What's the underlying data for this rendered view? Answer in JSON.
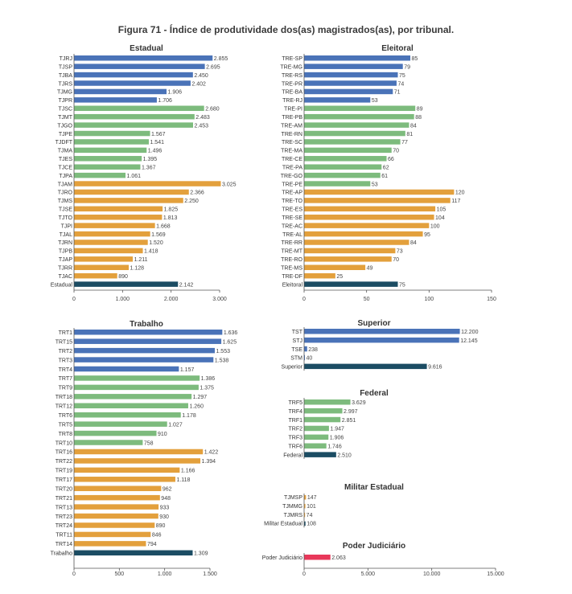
{
  "figure_title": "Figura 71 - Índice de produtividade dos(as) magistrados(as), por tribunal.",
  "colors": {
    "porte_grande": "#4a73b8",
    "porte_medio": "#7dbb7d",
    "porte_pequeno": "#e3a03c",
    "total": "#1b4c63",
    "poder_judiciario": "#e8385a",
    "axis": "#555555"
  },
  "chart_data": [
    {
      "type": "bar",
      "orientation": "horizontal",
      "title": "Estadual",
      "xlim": [
        0,
        3000
      ],
      "ticks": [
        0,
        1000,
        2000,
        3000
      ],
      "tick_labels": [
        "0",
        "1.000",
        "2.000",
        "3.000"
      ],
      "categories": [
        "TJRJ",
        "TJSP",
        "TJBA",
        "TJRS",
        "TJMG",
        "TJPR",
        "TJSC",
        "TJMT",
        "TJGO",
        "TJPE",
        "TJDFT",
        "TJMA",
        "TJES",
        "TJCE",
        "TJPA",
        "TJAM",
        "TJRO",
        "TJMS",
        "TJSE",
        "TJTO",
        "TJPI",
        "TJAL",
        "TJRN",
        "TJPB",
        "TJAP",
        "TJRR",
        "TJAC",
        "Estadual"
      ],
      "values": [
        2855,
        2695,
        2450,
        2402,
        1906,
        1706,
        2680,
        2483,
        2453,
        1567,
        1541,
        1496,
        1395,
        1367,
        1061,
        3025,
        2366,
        2250,
        1825,
        1813,
        1668,
        1569,
        1520,
        1418,
        1211,
        1128,
        890,
        2142
      ],
      "value_labels": [
        "2.855",
        "2.695",
        "2.450",
        "2.402",
        "1.906",
        "1.706",
        "2.680",
        "2.483",
        "2.453",
        "1.567",
        "1.541",
        "1.496",
        "1.395",
        "1.367",
        "1.061",
        "3.025",
        "2.366",
        "2.250",
        "1.825",
        "1.813",
        "1.668",
        "1.569",
        "1.520",
        "1.418",
        "1.211",
        "1.128",
        "890",
        "2.142"
      ],
      "groups": [
        "porte_grande",
        "porte_grande",
        "porte_grande",
        "porte_grande",
        "porte_grande",
        "porte_grande",
        "porte_medio",
        "porte_medio",
        "porte_medio",
        "porte_medio",
        "porte_medio",
        "porte_medio",
        "porte_medio",
        "porte_medio",
        "porte_medio",
        "porte_pequeno",
        "porte_pequeno",
        "porte_pequeno",
        "porte_pequeno",
        "porte_pequeno",
        "porte_pequeno",
        "porte_pequeno",
        "porte_pequeno",
        "porte_pequeno",
        "porte_pequeno",
        "porte_pequeno",
        "porte_pequeno",
        "total"
      ]
    },
    {
      "type": "bar",
      "orientation": "horizontal",
      "title": "Eleitoral",
      "xlim": [
        0,
        150
      ],
      "ticks": [
        0,
        50,
        100,
        150
      ],
      "tick_labels": [
        "0",
        "50",
        "100",
        "150"
      ],
      "categories": [
        "TRE-SP",
        "TRE-MG",
        "TRE-RS",
        "TRE-PR",
        "TRE-BA",
        "TRE-RJ",
        "TRE-PI",
        "TRE-PB",
        "TRE-AM",
        "TRE-RN",
        "TRE-SC",
        "TRE-MA",
        "TRE-CE",
        "TRE-PA",
        "TRE-GO",
        "TRE-PE",
        "TRE-AP",
        "TRE-TO",
        "TRE-ES",
        "TRE-SE",
        "TRE-AC",
        "TRE-AL",
        "TRE-RR",
        "TRE-MT",
        "TRE-RO",
        "TRE-MS",
        "TRE-DF",
        "Eleitoral"
      ],
      "values": [
        85,
        79,
        75,
        74,
        71,
        53,
        89,
        88,
        84,
        81,
        77,
        70,
        66,
        62,
        61,
        53,
        120,
        117,
        105,
        104,
        100,
        95,
        84,
        73,
        70,
        49,
        25,
        75
      ],
      "value_labels": [
        "85",
        "79",
        "75",
        "74",
        "71",
        "53",
        "89",
        "88",
        "84",
        "81",
        "77",
        "70",
        "66",
        "62",
        "61",
        "53",
        "120",
        "117",
        "105",
        "104",
        "100",
        "95",
        "84",
        "73",
        "70",
        "49",
        "25",
        "75"
      ],
      "groups": [
        "porte_grande",
        "porte_grande",
        "porte_grande",
        "porte_grande",
        "porte_grande",
        "porte_grande",
        "porte_medio",
        "porte_medio",
        "porte_medio",
        "porte_medio",
        "porte_medio",
        "porte_medio",
        "porte_medio",
        "porte_medio",
        "porte_medio",
        "porte_medio",
        "porte_pequeno",
        "porte_pequeno",
        "porte_pequeno",
        "porte_pequeno",
        "porte_pequeno",
        "porte_pequeno",
        "porte_pequeno",
        "porte_pequeno",
        "porte_pequeno",
        "porte_pequeno",
        "porte_pequeno",
        "total"
      ]
    },
    {
      "type": "bar",
      "orientation": "horizontal",
      "title": "Trabalho",
      "xlim": [
        0,
        1500
      ],
      "ticks": [
        0,
        500,
        1000,
        1500
      ],
      "tick_labels": [
        "0",
        "500",
        "1.000",
        "1.500"
      ],
      "categories": [
        "TRT1",
        "TRT15",
        "TRT2",
        "TRT3",
        "TRT4",
        "TRT7",
        "TRT9",
        "TRT18",
        "TRT12",
        "TRT6",
        "TRT5",
        "TRT8",
        "TRT10",
        "TRT16",
        "TRT22",
        "TRT19",
        "TRT17",
        "TRT20",
        "TRT21",
        "TRT13",
        "TRT23",
        "TRT24",
        "TRT11",
        "TRT14",
        "Trabalho"
      ],
      "values": [
        1636,
        1625,
        1553,
        1538,
        1157,
        1386,
        1375,
        1297,
        1260,
        1178,
        1027,
        910,
        758,
        1422,
        1394,
        1166,
        1118,
        962,
        948,
        933,
        930,
        890,
        846,
        794,
        1309
      ],
      "value_labels": [
        "1.636",
        "1.625",
        "1.553",
        "1.538",
        "1.157",
        "1.386",
        "1.375",
        "1.297",
        "1.260",
        "1.178",
        "1.027",
        "910",
        "758",
        "1.422",
        "1.394",
        "1.166",
        "1.118",
        "962",
        "948",
        "933",
        "930",
        "890",
        "846",
        "794",
        "1.309"
      ],
      "groups": [
        "porte_grande",
        "porte_grande",
        "porte_grande",
        "porte_grande",
        "porte_grande",
        "porte_medio",
        "porte_medio",
        "porte_medio",
        "porte_medio",
        "porte_medio",
        "porte_medio",
        "porte_medio",
        "porte_medio",
        "porte_pequeno",
        "porte_pequeno",
        "porte_pequeno",
        "porte_pequeno",
        "porte_pequeno",
        "porte_pequeno",
        "porte_pequeno",
        "porte_pequeno",
        "porte_pequeno",
        "porte_pequeno",
        "porte_pequeno",
        "total"
      ]
    },
    {
      "type": "bar",
      "orientation": "horizontal",
      "title": "Superior",
      "xlim": [
        0,
        15000
      ],
      "categories": [
        "TST",
        "STJ",
        "TSE",
        "STM",
        "Superior"
      ],
      "values": [
        12200,
        12145,
        238,
        40,
        9616
      ],
      "value_labels": [
        "12.200",
        "12.145",
        "238",
        "40",
        "9.616"
      ],
      "groups": [
        "porte_grande",
        "porte_grande",
        "porte_grande",
        "porte_grande",
        "total"
      ]
    },
    {
      "type": "bar",
      "orientation": "horizontal",
      "title": "Federal",
      "xlim": [
        0,
        15000
      ],
      "categories": [
        "TRF5",
        "TRF4",
        "TRF1",
        "TRF2",
        "TRF3",
        "TRF6",
        "Federal"
      ],
      "values": [
        3629,
        2997,
        2851,
        1947,
        1906,
        1746,
        2510
      ],
      "value_labels": [
        "3.629",
        "2.997",
        "2.851",
        "1.947",
        "1.906",
        "1.746",
        "2.510"
      ],
      "groups": [
        "porte_medio",
        "porte_medio",
        "porte_medio",
        "porte_medio",
        "porte_medio",
        "porte_medio",
        "total"
      ]
    },
    {
      "type": "bar",
      "orientation": "horizontal",
      "title": "Militar Estadual",
      "xlim": [
        0,
        15000
      ],
      "categories": [
        "TJMSP",
        "TJMMG",
        "TJMRS",
        "Militar Estadual"
      ],
      "values": [
        147,
        101,
        74,
        108
      ],
      "value_labels": [
        "147",
        "101",
        "74",
        "108"
      ],
      "groups": [
        "porte_pequeno",
        "porte_pequeno",
        "porte_pequeno",
        "total"
      ]
    },
    {
      "type": "bar",
      "orientation": "horizontal",
      "title": "Poder Judiciário",
      "xlim": [
        0,
        15000
      ],
      "ticks": [
        0,
        5000,
        10000,
        15000
      ],
      "tick_labels": [
        "0",
        "5.000",
        "10.000",
        "15.000"
      ],
      "categories": [
        "Poder Judiciário"
      ],
      "values": [
        2063
      ],
      "value_labels": [
        "2.063"
      ],
      "groups": [
        "poder_judiciario"
      ]
    }
  ]
}
